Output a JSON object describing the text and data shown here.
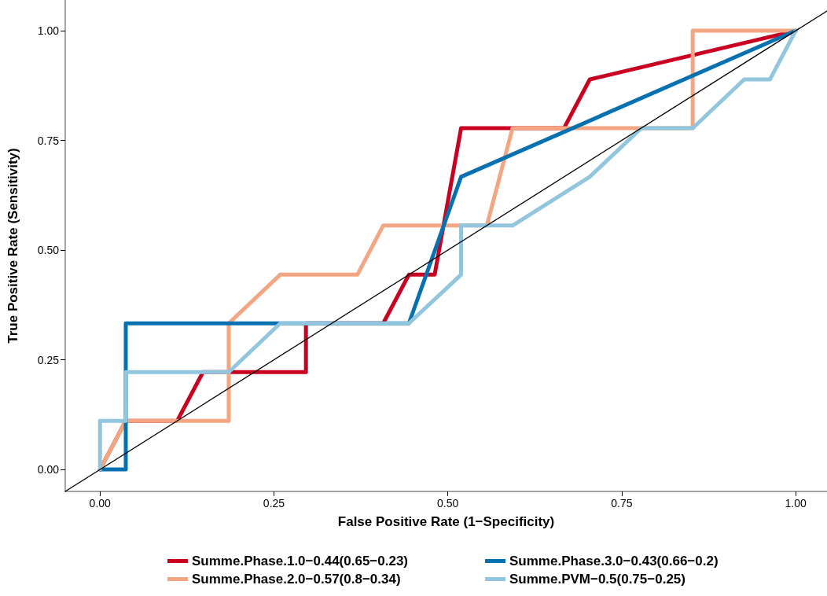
{
  "chart_data": {
    "type": "line",
    "xlabel": "False Positive Rate (1−Specificity)",
    "ylabel": "True Positive Rate (Sensitivity)",
    "xlim": [
      -0.05,
      1.045
    ],
    "ylim": [
      -0.05,
      1.07
    ],
    "xticks": [
      {
        "value": 0,
        "label": "0.00"
      },
      {
        "value": 0.25,
        "label": "0.25"
      },
      {
        "value": 0.5,
        "label": "0.50"
      },
      {
        "value": 0.75,
        "label": "0.75"
      },
      {
        "value": 1,
        "label": "1.00"
      }
    ],
    "yticks": [
      {
        "value": 0,
        "label": "0.00"
      },
      {
        "value": 0.25,
        "label": "0.25"
      },
      {
        "value": 0.5,
        "label": "0.50"
      },
      {
        "value": 0.75,
        "label": "0.75"
      },
      {
        "value": 1,
        "label": "1.00"
      }
    ],
    "grid": false,
    "legend": "bottom",
    "marker": "none",
    "line_style": "solid",
    "series": [
      {
        "name": "Summe.Phase.1.0−0.44(0.65−0.23)",
        "color": "#ca0020",
        "x": [
          0,
          0.037,
          0.111,
          0.148,
          0.296,
          0.296,
          0.407,
          0.444,
          0.481,
          0.519,
          0.667,
          0.704,
          1
        ],
        "values": [
          0,
          0.111,
          0.111,
          0.222,
          0.222,
          0.333,
          0.333,
          0.444,
          0.444,
          0.778,
          0.778,
          0.889,
          1
        ]
      },
      {
        "name": "Summe.Phase.2.0−0.57(0.8−0.34)",
        "color": "#f4a582",
        "x": [
          0,
          0.037,
          0.185,
          0.185,
          0.259,
          0.37,
          0.407,
          0.556,
          0.593,
          0.852,
          0.852,
          1
        ],
        "values": [
          0,
          0.111,
          0.111,
          0.333,
          0.444,
          0.444,
          0.556,
          0.556,
          0.778,
          0.778,
          1,
          1
        ]
      },
      {
        "name": "Summe.Phase.3.0−0.43(0.66−0.2)",
        "color": "#0571b0",
        "x": [
          0,
          0.037,
          0.037,
          0.444,
          0.519,
          1
        ],
        "values": [
          0,
          0,
          0.333,
          0.333,
          0.667,
          1
        ]
      },
      {
        "name": "Summe.PVM−0.5(0.75−0.25)",
        "color": "#92c5de",
        "x": [
          0,
          0,
          0.037,
          0.037,
          0.185,
          0.259,
          0.444,
          0.519,
          0.519,
          0.593,
          0.704,
          0.778,
          0.852,
          0.926,
          0.963,
          1
        ],
        "values": [
          0,
          0.111,
          0.111,
          0.222,
          0.222,
          0.333,
          0.333,
          0.444,
          0.556,
          0.556,
          0.667,
          0.778,
          0.778,
          0.889,
          0.889,
          1
        ]
      },
      {
        "type": "line",
        "color": "#000000",
        "x": [
          -0.05,
          1.045
        ],
        "values": [
          -0.05,
          1.045
        ]
      }
    ]
  }
}
